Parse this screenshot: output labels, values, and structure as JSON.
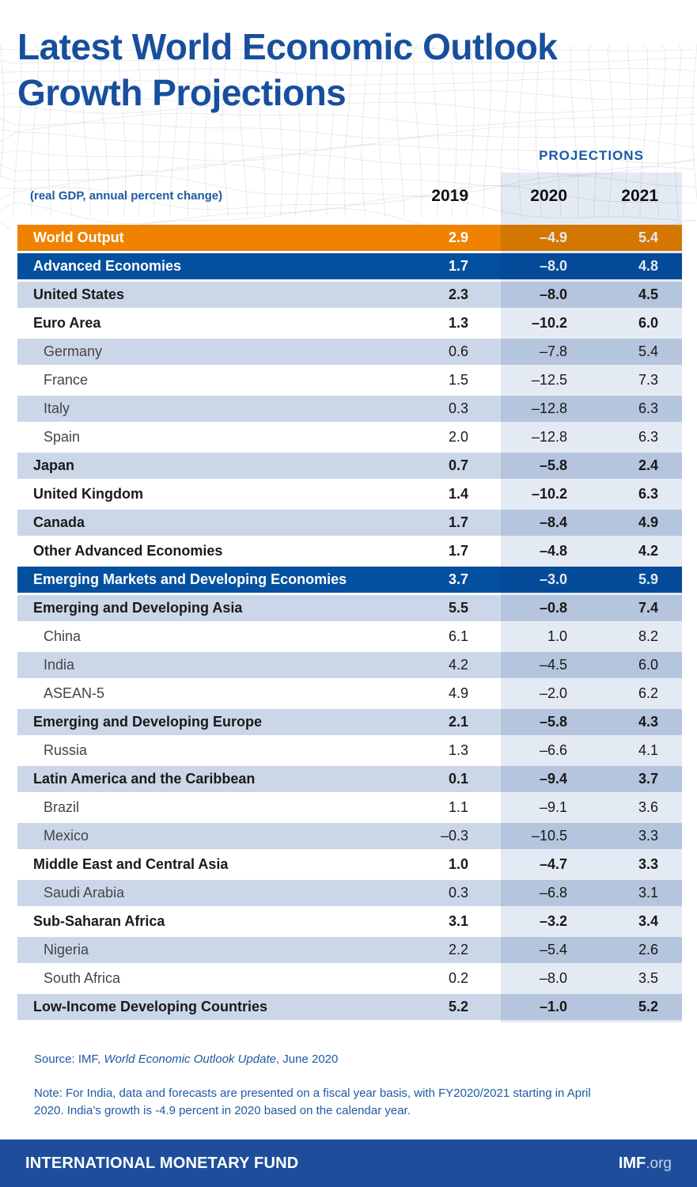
{
  "title": {
    "line1": "Latest World Economic Outlook",
    "line2": "Growth Projections"
  },
  "header": {
    "projections_label": "PROJECTIONS",
    "subtitle": "(real GDP, annual percent change)",
    "years": [
      "2019",
      "2020",
      "2021"
    ]
  },
  "colors": {
    "title_blue": "#174F9C",
    "accent_orange": "#EF8200",
    "dark_blue_row": "#0350A0",
    "light_blue_row": "#CBD7E8",
    "projections_tint": "#E3EAF3",
    "footer_blue": "#1E4E9B",
    "small_text_blue": "#1D5AA4"
  },
  "chart_data": {
    "type": "table",
    "title": "Latest World Economic Outlook Growth Projections",
    "unit": "real GDP, annual percent change",
    "columns": [
      "2019",
      "2020",
      "2021"
    ],
    "rows": [
      {
        "label": "World Output",
        "style": "orange",
        "bold": true,
        "indent": false,
        "values": [
          "2.9",
          "–4.9",
          "5.4"
        ]
      },
      {
        "label": "Advanced Economies",
        "style": "darkblue",
        "bold": true,
        "indent": false,
        "values": [
          "1.7",
          "–8.0",
          "4.8"
        ]
      },
      {
        "label": "United States",
        "style": "lightblue",
        "bold": true,
        "indent": false,
        "values": [
          "2.3",
          "–8.0",
          "4.5"
        ]
      },
      {
        "label": "Euro Area",
        "style": "white",
        "bold": true,
        "indent": false,
        "values": [
          "1.3",
          "–10.2",
          "6.0"
        ]
      },
      {
        "label": "Germany",
        "style": "lightblue",
        "bold": false,
        "indent": true,
        "values": [
          "0.6",
          "–7.8",
          "5.4"
        ]
      },
      {
        "label": "France",
        "style": "white",
        "bold": false,
        "indent": true,
        "values": [
          "1.5",
          "–12.5",
          "7.3"
        ]
      },
      {
        "label": "Italy",
        "style": "lightblue",
        "bold": false,
        "indent": true,
        "values": [
          "0.3",
          "–12.8",
          "6.3"
        ]
      },
      {
        "label": "Spain",
        "style": "white",
        "bold": false,
        "indent": true,
        "values": [
          "2.0",
          "–12.8",
          "6.3"
        ]
      },
      {
        "label": "Japan",
        "style": "lightblue",
        "bold": true,
        "indent": false,
        "values": [
          "0.7",
          "–5.8",
          "2.4"
        ]
      },
      {
        "label": "United Kingdom",
        "style": "white",
        "bold": true,
        "indent": false,
        "values": [
          "1.4",
          "–10.2",
          "6.3"
        ]
      },
      {
        "label": "Canada",
        "style": "lightblue",
        "bold": true,
        "indent": false,
        "values": [
          "1.7",
          "–8.4",
          "4.9"
        ]
      },
      {
        "label": "Other Advanced Economies",
        "style": "white",
        "bold": true,
        "indent": false,
        "values": [
          "1.7",
          "–4.8",
          "4.2"
        ]
      },
      {
        "label": "Emerging Markets and Developing Economies",
        "style": "darkblue",
        "bold": true,
        "indent": false,
        "values": [
          "3.7",
          "–3.0",
          "5.9"
        ]
      },
      {
        "label": "Emerging and Developing Asia",
        "style": "lightblue",
        "bold": true,
        "indent": false,
        "values": [
          "5.5",
          "–0.8",
          "7.4"
        ]
      },
      {
        "label": "China",
        "style": "white",
        "bold": false,
        "indent": true,
        "values": [
          "6.1",
          "1.0",
          "8.2"
        ]
      },
      {
        "label": "India",
        "style": "lightblue",
        "bold": false,
        "indent": true,
        "values": [
          "4.2",
          "–4.5",
          "6.0"
        ]
      },
      {
        "label": "ASEAN-5",
        "style": "white",
        "bold": false,
        "indent": true,
        "values": [
          "4.9",
          "–2.0",
          "6.2"
        ]
      },
      {
        "label": "Emerging and Developing Europe",
        "style": "lightblue",
        "bold": true,
        "indent": false,
        "values": [
          "2.1",
          "–5.8",
          "4.3"
        ]
      },
      {
        "label": "Russia",
        "style": "white",
        "bold": false,
        "indent": true,
        "values": [
          "1.3",
          "–6.6",
          "4.1"
        ]
      },
      {
        "label": "Latin America and the Caribbean",
        "style": "lightblue",
        "bold": true,
        "indent": false,
        "values": [
          "0.1",
          "–9.4",
          "3.7"
        ]
      },
      {
        "label": "Brazil",
        "style": "white",
        "bold": false,
        "indent": true,
        "values": [
          "1.1",
          "–9.1",
          "3.6"
        ]
      },
      {
        "label": "Mexico",
        "style": "lightblue",
        "bold": false,
        "indent": true,
        "values": [
          "–0.3",
          "–10.5",
          "3.3"
        ]
      },
      {
        "label": "Middle East and Central Asia",
        "style": "white",
        "bold": true,
        "indent": false,
        "values": [
          "1.0",
          "–4.7",
          "3.3"
        ]
      },
      {
        "label": "Saudi Arabia",
        "style": "lightblue",
        "bold": false,
        "indent": true,
        "values": [
          "0.3",
          "–6.8",
          "3.1"
        ]
      },
      {
        "label": "Sub-Saharan Africa",
        "style": "white",
        "bold": true,
        "indent": false,
        "values": [
          "3.1",
          "–3.2",
          "3.4"
        ]
      },
      {
        "label": "Nigeria",
        "style": "lightblue",
        "bold": false,
        "indent": true,
        "values": [
          "2.2",
          "–5.4",
          "2.6"
        ]
      },
      {
        "label": "South Africa",
        "style": "white",
        "bold": false,
        "indent": true,
        "values": [
          "0.2",
          "–8.0",
          "3.5"
        ]
      },
      {
        "label": "Low-Income Developing Countries",
        "style": "lightblue",
        "bold": true,
        "indent": false,
        "values": [
          "5.2",
          "–1.0",
          "5.2"
        ]
      }
    ]
  },
  "source": {
    "prefix": "Source: IMF, ",
    "italic": "World Economic Outlook Update",
    "suffix": ", June 2020"
  },
  "note": "Note: For India, data and forecasts are presented on a fiscal year basis, with FY2020/2021 starting in April 2020. India’s growth is -4.9 percent in 2020 based on the calendar year.",
  "footer": {
    "org": "INTERNATIONAL MONETARY FUND",
    "site_bold": "IMF",
    "site_suffix": ".org"
  }
}
